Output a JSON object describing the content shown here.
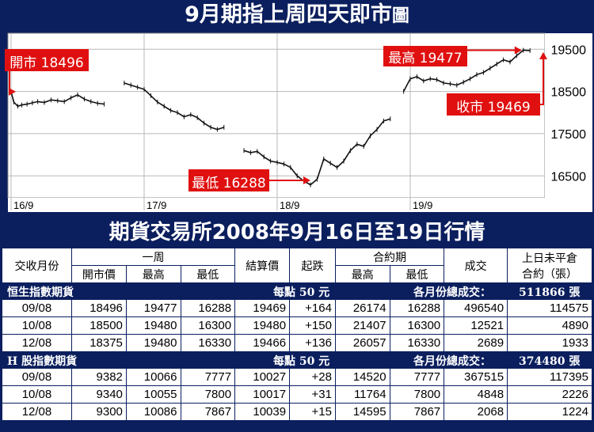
{
  "title_main": "9月期指上周四天即市",
  "title_suffix": "圖",
  "table_title": "期貨交易所2008年9月16日至19日行情",
  "chart_data": {
    "type": "line",
    "y_ticks": [
      "19500",
      "18500",
      "17500",
      "16500"
    ],
    "ylim": [
      15980,
      19880
    ],
    "x_ticks": [
      "16/9",
      "17/9",
      "18/9",
      "19/9"
    ],
    "x": [
      0,
      0.02,
      0.05,
      0.08,
      0.12,
      0.16,
      0.2,
      0.25,
      0.3,
      0.35,
      0.4,
      0.45,
      0.5,
      0.55,
      0.6,
      0.65,
      0.7,
      0.75,
      0.8,
      0.85,
      0.9,
      0.95,
      1.0,
      1.05,
      1.1,
      1.15,
      1.2,
      1.25,
      1.3,
      1.35,
      1.4,
      1.45,
      1.5,
      1.55,
      1.6,
      1.65,
      1.7,
      1.75,
      1.8,
      1.85,
      1.9,
      1.95,
      2.0,
      2.05,
      2.1,
      2.15,
      2.2,
      2.25,
      2.3,
      2.35,
      2.4,
      2.45,
      2.5,
      2.55,
      2.6,
      2.65,
      2.7,
      2.75,
      2.8,
      2.85,
      2.9,
      2.95,
      3.0,
      3.05,
      3.1,
      3.15,
      3.2,
      3.25,
      3.3,
      3.35,
      3.4,
      3.45,
      3.5,
      3.55,
      3.6,
      3.65,
      3.7,
      3.75,
      3.8,
      3.85,
      3.9
    ],
    "values": [
      18496,
      18250,
      18150,
      18180,
      18200,
      18230,
      18260,
      18240,
      18300,
      18280,
      18260,
      18350,
      18420,
      18320,
      18260,
      18220,
      18200,
      null,
      null,
      18700,
      18650,
      18600,
      18550,
      18400,
      18250,
      18150,
      18050,
      18000,
      17900,
      17950,
      17880,
      17750,
      17650,
      17600,
      17650,
      null,
      null,
      17100,
      17050,
      17080,
      16950,
      16850,
      16820,
      16780,
      16700,
      16500,
      16380,
      16288,
      16420,
      16900,
      16800,
      16700,
      16850,
      17100,
      17250,
      17200,
      17450,
      17600,
      17800,
      17850,
      null,
      18500,
      18800,
      18850,
      18750,
      18800,
      18780,
      18700,
      18680,
      18650,
      18720,
      18800,
      18900,
      18950,
      19050,
      19150,
      19250,
      19200,
      19350,
      19477,
      19469
    ],
    "annotations": [
      {
        "label": "開市 18496",
        "value": 18496
      },
      {
        "label": "最高 19477",
        "value": 19477
      },
      {
        "label": "收市 19469",
        "value": 19469
      },
      {
        "label": "最低 16288",
        "value": 16288
      }
    ]
  },
  "table": {
    "headers": {
      "month": "交收月份",
      "week": "一周",
      "open": "開市價",
      "high": "最高",
      "low": "最低",
      "settle": "結算價",
      "change": "起跌",
      "contract": "合約期",
      "c_high": "最高",
      "c_low": "最低",
      "volume": "成交",
      "oi_line1": "上日未平倉",
      "oi_line2": "合約（張）"
    },
    "sections": [
      {
        "name": "恒生指數期貨",
        "point": "每點 50 元",
        "total_label": "各月份總成交：",
        "total_value": "511866 張",
        "rows": [
          [
            "09/08",
            "18496",
            "19477",
            "16288",
            "19469",
            "+164",
            "26174",
            "16288",
            "496540",
            "114575"
          ],
          [
            "10/08",
            "18500",
            "19480",
            "16300",
            "19480",
            "+150",
            "21407",
            "16300",
            "12521",
            "4890"
          ],
          [
            "12/08",
            "18375",
            "19480",
            "16330",
            "19466",
            "+136",
            "26057",
            "16330",
            "2689",
            "1933"
          ]
        ]
      },
      {
        "name": "H 股指數期貨",
        "point": "每點 50 元",
        "total_label": "各月份總成交：",
        "total_value": "374480 張",
        "rows": [
          [
            "09/08",
            "9382",
            "10066",
            "7777",
            "10027",
            "+28",
            "14520",
            "7777",
            "367515",
            "117395"
          ],
          [
            "10/08",
            "9340",
            "10055",
            "7800",
            "10017",
            "+31",
            "11764",
            "7800",
            "4848",
            "2226"
          ],
          [
            "12/08",
            "9300",
            "10086",
            "7867",
            "10039",
            "+15",
            "14595",
            "7867",
            "2068",
            "1224"
          ]
        ]
      }
    ]
  },
  "colors": {
    "navy": "#0b1f5e",
    "red": "#e01010",
    "grid": "#b8b8b8",
    "plot_bg": "#ffffff"
  }
}
